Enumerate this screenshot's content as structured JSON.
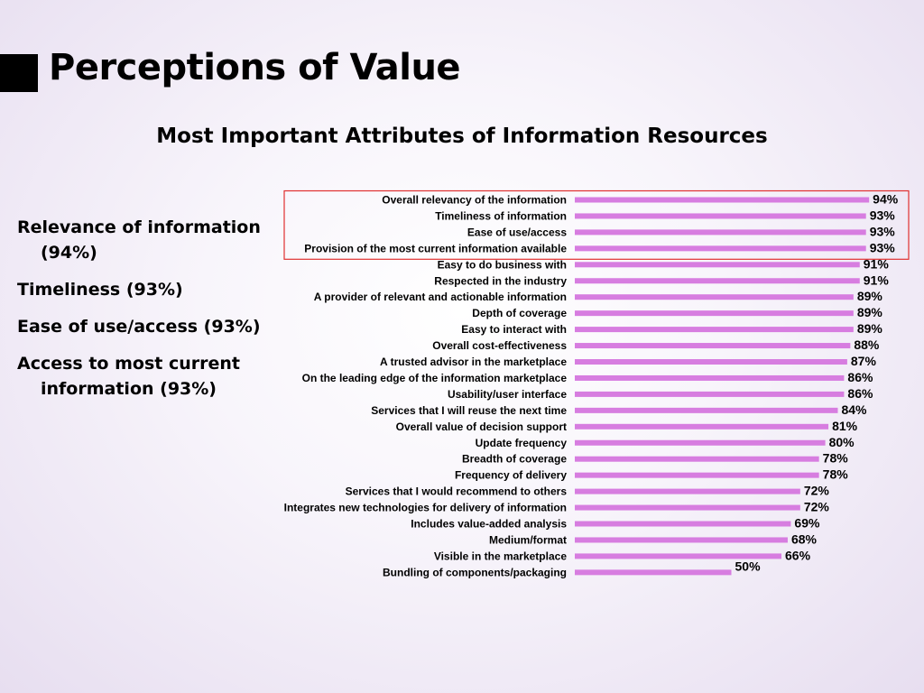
{
  "slide": {
    "title": "Perceptions of Value",
    "bullets": [
      "Relevance of information (94%)",
      "Timeliness (93%)",
      "Ease of use/access (93%)",
      "Access to most current information (93%)"
    ]
  },
  "colors": {
    "bar": "#d77de0",
    "highlight_box": "#e03030",
    "text": "#000000"
  },
  "chart_data": {
    "type": "bar",
    "orientation": "horizontal",
    "title": "Most Important Attributes of Information Resources",
    "value_format": "percent",
    "xlim": [
      0,
      100
    ],
    "grid": false,
    "highlighted_categories": [
      "Overall relevancy of the information",
      "Timeliness of information",
      "Ease of use/access",
      "Provision of the most current information available"
    ],
    "categories": [
      "Overall relevancy of the information",
      "Timeliness of information",
      "Ease of use/access",
      "Provision of the most current information available",
      "Easy to do business with",
      "Respected in the industry",
      "A provider of relevant and actionable information",
      "Depth of coverage",
      "Easy to interact with",
      "Overall cost-effectiveness",
      "A trusted advisor in the marketplace",
      "On the leading edge of the information marketplace",
      "Usability/user interface",
      "Services that I will reuse the next time",
      "Overall value of decision support",
      "Update frequency",
      "Breadth of coverage",
      "Frequency of delivery",
      "Services that I would recommend to others",
      "Integrates new technologies for delivery of information",
      "Includes value-added analysis",
      "Medium/format",
      "Visible in the marketplace",
      "Bundling of components/packaging"
    ],
    "values": [
      94,
      93,
      93,
      93,
      91,
      91,
      89,
      89,
      89,
      88,
      87,
      86,
      86,
      84,
      81,
      80,
      78,
      78,
      72,
      72,
      69,
      68,
      66,
      50
    ],
    "value_labels": [
      "94%",
      "93%",
      "93%",
      "93%",
      "91%",
      "91%",
      "89%",
      "89%",
      "89%",
      "88%",
      "87%",
      "86%",
      "86%",
      "84%",
      "81%",
      "80%",
      "78%",
      "78%",
      "72%",
      "72%",
      "69%",
      "68%",
      "66%",
      "50%"
    ]
  }
}
